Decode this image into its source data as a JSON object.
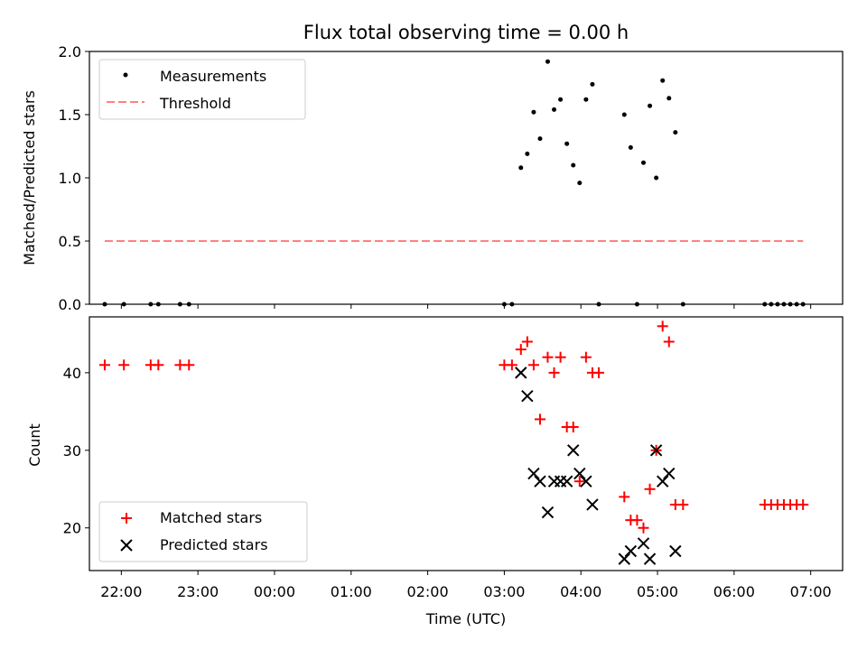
{
  "title": "Flux total observing time = 0.00 h",
  "chart_data": [
    {
      "type": "scatter",
      "panel": "top",
      "xlabel": "",
      "ylabel": "Matched/Predicted stars",
      "ylim": [
        0,
        2.0
      ],
      "xlim": [
        "21:35",
        "07:25"
      ],
      "yticks": [
        0.0,
        0.5,
        1.0,
        1.5,
        2.0
      ],
      "ytick_labels": [
        "0.0",
        "0.5",
        "1.0",
        "1.5",
        "2.0"
      ],
      "grid": false,
      "legend": "top-left",
      "legend_labels": {
        "measurements": "Measurements",
        "threshold": "Threshold"
      },
      "threshold": {
        "y": 0.5,
        "x": [
          "21:47",
          "06:54"
        ],
        "color": "#ff8080"
      },
      "measurements": [
        [
          "21:47",
          0.0
        ],
        [
          "22:02",
          0.0
        ],
        [
          "22:23",
          0.0
        ],
        [
          "22:29",
          0.0
        ],
        [
          "22:46",
          0.0
        ],
        [
          "22:53",
          0.0
        ],
        [
          "03:00",
          0.0
        ],
        [
          "03:06",
          0.0
        ],
        [
          "03:13",
          1.08
        ],
        [
          "03:18",
          1.19
        ],
        [
          "03:23",
          1.52
        ],
        [
          "03:28",
          1.31
        ],
        [
          "03:34",
          1.92
        ],
        [
          "03:39",
          1.54
        ],
        [
          "03:44",
          1.62
        ],
        [
          "03:49",
          1.27
        ],
        [
          "03:54",
          1.1
        ],
        [
          "03:59",
          0.96
        ],
        [
          "04:04",
          1.62
        ],
        [
          "04:09",
          1.74
        ],
        [
          "04:14",
          0.0
        ],
        [
          "04:34",
          1.5
        ],
        [
          "04:39",
          1.24
        ],
        [
          "04:44",
          0.0
        ],
        [
          "04:49",
          1.12
        ],
        [
          "04:54",
          1.57
        ],
        [
          "04:59",
          1.0
        ],
        [
          "05:04",
          1.77
        ],
        [
          "05:09",
          1.63
        ],
        [
          "05:14",
          1.36
        ],
        [
          "05:20",
          0.0
        ],
        [
          "06:24",
          0.0
        ],
        [
          "06:29",
          0.0
        ],
        [
          "06:34",
          0.0
        ],
        [
          "06:39",
          0.0
        ],
        [
          "06:44",
          0.0
        ],
        [
          "06:49",
          0.0
        ],
        [
          "06:54",
          0.0
        ]
      ]
    },
    {
      "type": "scatter",
      "panel": "bottom",
      "xlabel": "Time (UTC)",
      "ylabel": "Count",
      "ylim": [
        14.5,
        47.2
      ],
      "xlim": [
        "21:35",
        "07:25"
      ],
      "yticks": [
        20,
        30,
        40
      ],
      "ytick_labels": [
        "20",
        "30",
        "40"
      ],
      "xticks": [
        "22:00",
        "23:00",
        "00:00",
        "01:00",
        "02:00",
        "03:00",
        "04:00",
        "05:00",
        "06:00",
        "07:00"
      ],
      "grid": false,
      "legend": "lower-left",
      "series": [
        {
          "name": "Matched stars",
          "marker": "+",
          "color": "#ff0000",
          "points": [
            [
              "21:47",
              41
            ],
            [
              "22:02",
              41
            ],
            [
              "22:23",
              41
            ],
            [
              "22:29",
              41
            ],
            [
              "22:46",
              41
            ],
            [
              "22:53",
              41
            ],
            [
              "03:00",
              41
            ],
            [
              "03:06",
              41
            ],
            [
              "03:13",
              43
            ],
            [
              "03:18",
              44
            ],
            [
              "03:23",
              41
            ],
            [
              "03:28",
              34
            ],
            [
              "03:34",
              42
            ],
            [
              "03:39",
              40
            ],
            [
              "03:44",
              42
            ],
            [
              "03:49",
              33
            ],
            [
              "03:54",
              33
            ],
            [
              "03:59",
              26
            ],
            [
              "04:04",
              42
            ],
            [
              "04:09",
              40
            ],
            [
              "04:14",
              40
            ],
            [
              "04:34",
              24
            ],
            [
              "04:39",
              21
            ],
            [
              "04:44",
              21
            ],
            [
              "04:49",
              20
            ],
            [
              "04:54",
              25
            ],
            [
              "04:59",
              30
            ],
            [
              "05:04",
              46
            ],
            [
              "05:09",
              44
            ],
            [
              "05:14",
              23
            ],
            [
              "05:20",
              23
            ],
            [
              "06:24",
              23
            ],
            [
              "06:29",
              23
            ],
            [
              "06:34",
              23
            ],
            [
              "06:39",
              23
            ],
            [
              "06:44",
              23
            ],
            [
              "06:49",
              23
            ],
            [
              "06:54",
              23
            ]
          ]
        },
        {
          "name": "Predicted stars",
          "marker": "x",
          "color": "#000000",
          "points": [
            [
              "03:13",
              40
            ],
            [
              "03:18",
              37
            ],
            [
              "03:23",
              27
            ],
            [
              "03:28",
              26
            ],
            [
              "03:34",
              22
            ],
            [
              "03:39",
              26
            ],
            [
              "03:44",
              26
            ],
            [
              "03:49",
              26
            ],
            [
              "03:54",
              30
            ],
            [
              "03:59",
              27
            ],
            [
              "04:04",
              26
            ],
            [
              "04:09",
              23
            ],
            [
              "04:34",
              16
            ],
            [
              "04:39",
              17
            ],
            [
              "04:49",
              18
            ],
            [
              "04:54",
              16
            ],
            [
              "04:59",
              30
            ],
            [
              "05:04",
              26
            ],
            [
              "05:09",
              27
            ],
            [
              "05:14",
              17
            ]
          ]
        }
      ]
    }
  ]
}
